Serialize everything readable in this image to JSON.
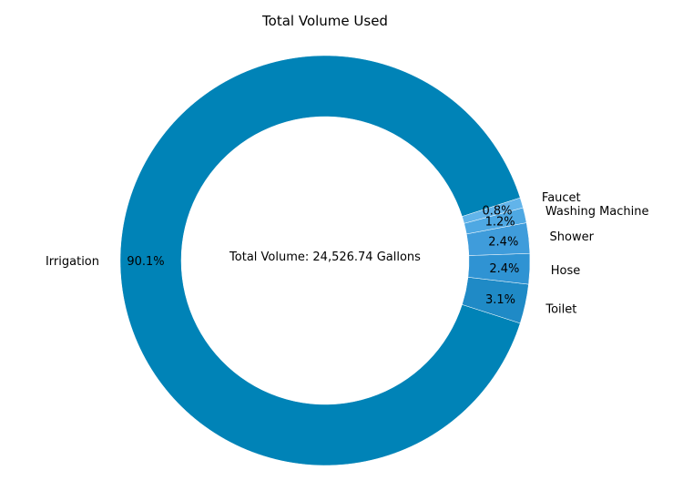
{
  "chart_data": {
    "type": "pie",
    "variant": "donut",
    "title": "Total Volume Used",
    "center_label": "Total Volume: 24,526.74 Gallons",
    "slices": [
      {
        "label": "Irrigation",
        "value": 90.1,
        "pct_label": "90.1%",
        "color": "#0083b7"
      },
      {
        "label": "Toilet",
        "value": 3.1,
        "pct_label": "3.1%",
        "color": "#1f8ac6"
      },
      {
        "label": "Hose",
        "value": 2.4,
        "pct_label": "2.4%",
        "color": "#2f93d3"
      },
      {
        "label": "Shower",
        "value": 2.4,
        "pct_label": "2.4%",
        "color": "#3f9cdb"
      },
      {
        "label": "Washing Machine",
        "value": 1.2,
        "pct_label": "1.2%",
        "color": "#4ea8e3"
      },
      {
        "label": "Faucet",
        "value": 0.8,
        "pct_label": "0.8%",
        "color": "#62b4ea"
      }
    ]
  }
}
